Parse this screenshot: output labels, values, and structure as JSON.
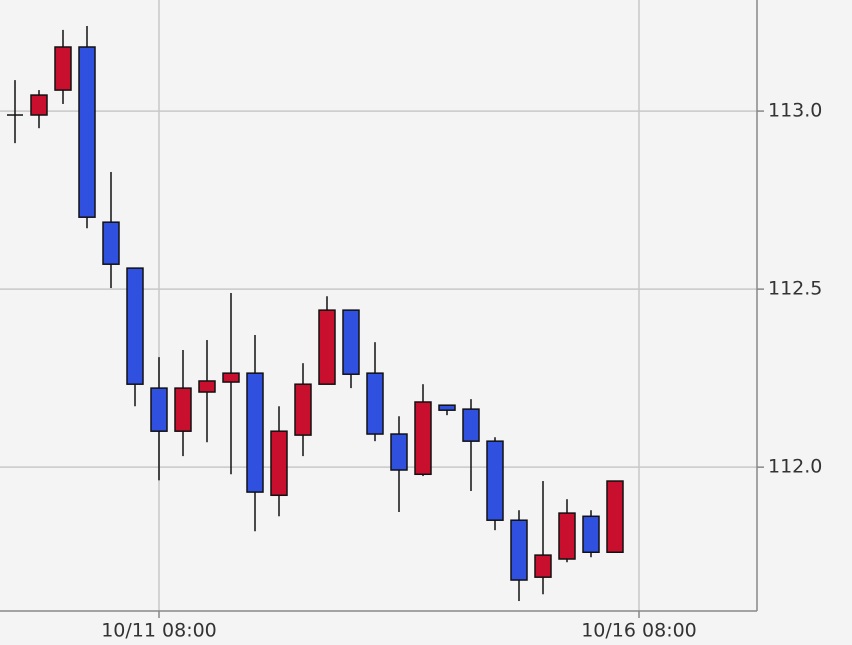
{
  "chart_data": {
    "type": "candlestick",
    "categories": [
      null,
      null,
      null,
      null,
      null,
      null,
      "10/11 08:00",
      null,
      null,
      null,
      null,
      null,
      null,
      null,
      null,
      null,
      null,
      null,
      null,
      null,
      null,
      null,
      null,
      null,
      null,
      null,
      "10/16 08:00",
      null,
      null,
      null,
      null
    ],
    "open": [
      112.989,
      112.989,
      113.059,
      113.18,
      112.688,
      112.559,
      112.222,
      112.101,
      112.211,
      112.239,
      112.264,
      111.921,
      112.09,
      112.233,
      112.441,
      112.264,
      112.093,
      111.98,
      112.174,
      112.163,
      112.073,
      111.851,
      111.691,
      111.742,
      111.862,
      111.761,
      null,
      null,
      null,
      null,
      null
    ],
    "high": [
      113.087,
      113.059,
      113.228,
      113.239,
      112.829,
      112.559,
      112.309,
      112.329,
      112.357,
      112.489,
      112.371,
      112.171,
      112.292,
      112.48,
      112.441,
      112.351,
      112.143,
      112.233,
      112.174,
      112.191,
      112.084,
      111.879,
      111.961,
      111.91,
      111.879,
      111.961,
      null,
      null,
      null,
      null,
      null
    ],
    "low": [
      112.91,
      112.952,
      113.02,
      112.671,
      112.503,
      112.171,
      111.963,
      112.031,
      112.07,
      111.98,
      111.82,
      111.862,
      112.031,
      112.233,
      112.222,
      112.073,
      111.874,
      111.975,
      112.146,
      111.933,
      111.823,
      111.624,
      111.643,
      111.733,
      111.747,
      111.761,
      null,
      null,
      null,
      null,
      null
    ],
    "close": [
      112.989,
      113.045,
      113.18,
      112.702,
      112.57,
      112.233,
      112.101,
      112.222,
      112.242,
      112.264,
      111.93,
      112.101,
      112.233,
      112.441,
      112.261,
      112.093,
      111.992,
      112.183,
      112.16,
      112.073,
      111.851,
      111.683,
      111.753,
      111.871,
      111.761,
      111.961,
      null,
      null,
      null,
      null,
      null
    ],
    "up_color": "#c8102e",
    "down_color": "#3050e0",
    "ylim": [
      111.596,
      113.312
    ],
    "yticks": [
      {
        "value": 112,
        "label": "112.0"
      },
      {
        "value": 112.5,
        "label": "112.5"
      },
      {
        "value": 113,
        "label": "113.0"
      }
    ],
    "grid": true
  }
}
